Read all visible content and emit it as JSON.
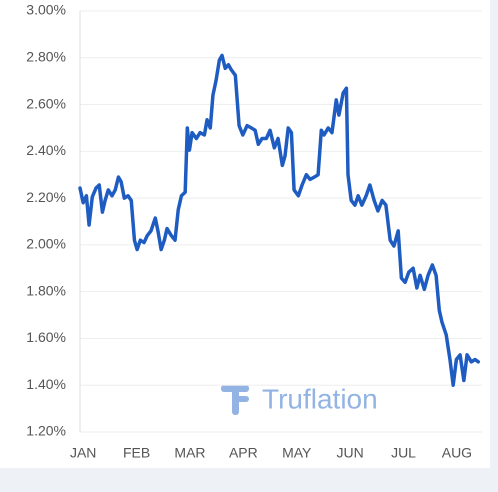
{
  "chart_data": {
    "type": "line",
    "annotation": "Truflation",
    "color": "#1f5cc2",
    "grid": true,
    "xlim": [
      -0.06,
      7.47
    ],
    "xticks": [
      {
        "value": 0,
        "label": "JAN"
      },
      {
        "value": 1,
        "label": "FEB"
      },
      {
        "value": 2,
        "label": "MAR"
      },
      {
        "value": 3,
        "label": "APR"
      },
      {
        "value": 4,
        "label": "MAY"
      },
      {
        "value": 5,
        "label": "JUN"
      },
      {
        "value": 6,
        "label": "JUL"
      },
      {
        "value": 7,
        "label": "AUG"
      }
    ],
    "ylim": [
      1.2,
      3.0
    ],
    "yticks": [
      {
        "value": 1.2,
        "label": "1.20%"
      },
      {
        "value": 1.4,
        "label": "1.40%"
      },
      {
        "value": 1.6,
        "label": "1.60%"
      },
      {
        "value": 1.8,
        "label": "1.80%"
      },
      {
        "value": 2.0,
        "label": "2.00%"
      },
      {
        "value": 2.2,
        "label": "2.20%"
      },
      {
        "value": 2.4,
        "label": "2.40%"
      },
      {
        "value": 2.6,
        "label": "2.60%"
      },
      {
        "value": 2.8,
        "label": "2.80%"
      },
      {
        "value": 3.0,
        "label": "3.00%"
      }
    ],
    "x": [
      -0.06,
      0,
      0.06,
      0.11,
      0.17,
      0.24,
      0.3,
      0.36,
      0.41,
      0.47,
      0.54,
      0.6,
      0.66,
      0.71,
      0.77,
      0.84,
      0.9,
      0.96,
      1.01,
      1.07,
      1.14,
      1.2,
      1.27,
      1.35,
      1.4,
      1.46,
      1.52,
      1.57,
      1.65,
      1.72,
      1.78,
      1.84,
      1.91,
      1.95,
      1.99,
      2.04,
      2.12,
      2.19,
      2.27,
      2.32,
      2.38,
      2.43,
      2.49,
      2.55,
      2.6,
      2.66,
      2.72,
      2.77,
      2.85,
      2.92,
      2.99,
      3.07,
      3.15,
      3.22,
      3.28,
      3.35,
      3.43,
      3.5,
      3.58,
      3.65,
      3.73,
      3.78,
      3.84,
      3.9,
      3.95,
      4.03,
      4.1,
      4.18,
      4.25,
      4.33,
      4.4,
      4.46,
      4.51,
      4.59,
      4.66,
      4.74,
      4.79,
      4.87,
      4.93,
      4.96,
      5.02,
      5.09,
      5.15,
      5.22,
      5.3,
      5.37,
      5.45,
      5.52,
      5.6,
      5.67,
      5.75,
      5.82,
      5.9,
      5.96,
      6.03,
      6.1,
      6.18,
      6.25,
      6.31,
      6.39,
      6.46,
      6.54,
      6.61,
      6.67,
      6.72,
      6.8,
      6.87,
      6.93,
      6.99,
      7.06,
      7.13,
      7.19,
      7.27,
      7.34,
      7.4
    ],
    "values": [
      2.243,
      2.18,
      2.21,
      2.085,
      2.205,
      2.243,
      2.256,
      2.14,
      2.19,
      2.235,
      2.21,
      2.235,
      2.29,
      2.27,
      2.2,
      2.21,
      2.19,
      2.02,
      1.98,
      2.02,
      2.01,
      2.04,
      2.06,
      2.115,
      2.06,
      1.98,
      2.02,
      2.07,
      2.04,
      2.02,
      2.15,
      2.21,
      2.225,
      2.5,
      2.405,
      2.48,
      2.455,
      2.48,
      2.47,
      2.535,
      2.5,
      2.64,
      2.705,
      2.79,
      2.81,
      2.755,
      2.77,
      2.75,
      2.725,
      2.51,
      2.47,
      2.51,
      2.5,
      2.49,
      2.43,
      2.455,
      2.455,
      2.49,
      2.415,
      2.455,
      2.34,
      2.38,
      2.5,
      2.48,
      2.235,
      2.21,
      2.256,
      2.3,
      2.28,
      2.29,
      2.3,
      2.49,
      2.47,
      2.5,
      2.48,
      2.62,
      2.555,
      2.65,
      2.67,
      2.3,
      2.19,
      2.17,
      2.21,
      2.17,
      2.21,
      2.256,
      2.19,
      2.145,
      2.19,
      2.17,
      2.02,
      1.995,
      2.06,
      1.858,
      1.84,
      1.884,
      1.9,
      1.816,
      1.87,
      1.81,
      1.87,
      1.914,
      1.87,
      1.72,
      1.67,
      1.615,
      1.51,
      1.4,
      1.51,
      1.53,
      1.42,
      1.53,
      1.5,
      1.51,
      1.5
    ]
  }
}
